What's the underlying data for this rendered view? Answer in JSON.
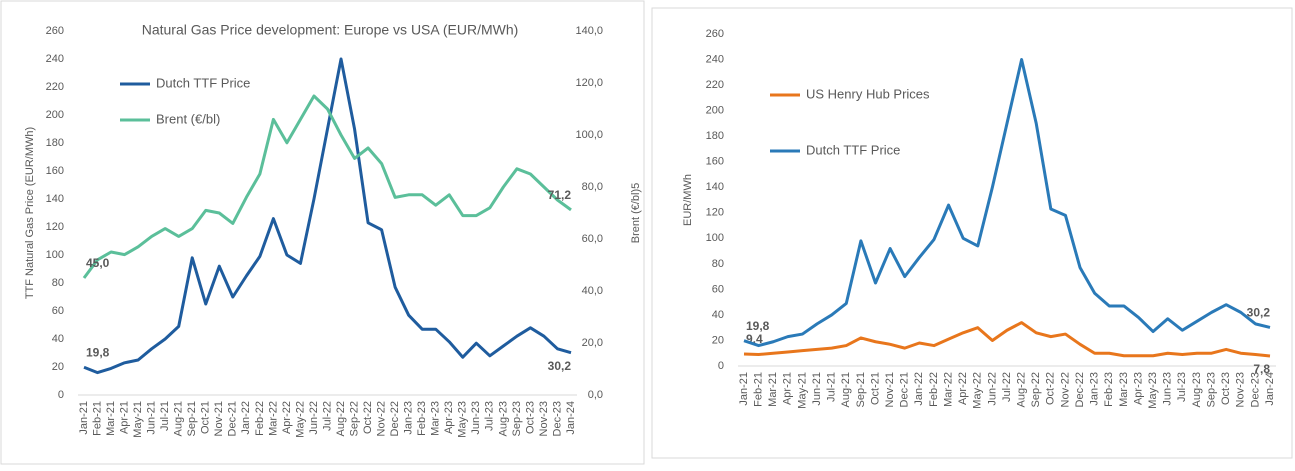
{
  "chart_data": [
    {
      "type": "line",
      "title": "Natural Gas Price development:  Europe vs USA (EUR/MWh)",
      "y_label": "TTF Natural Gas Price (EUR/MWh)",
      "y2_label": "Brent (€/bl)5",
      "legend": "upper left",
      "categories": [
        "Jan-21",
        "Feb-21",
        "Mar-21",
        "Apr-21",
        "May-21",
        "Jun-21",
        "Jul-21",
        "Aug-21",
        "Sep-21",
        "Oct-21",
        "Nov-21",
        "Dec-21",
        "Jan-22",
        "Feb-22",
        "Mar-22",
        "Apr-22",
        "May-22",
        "Jun-22",
        "Jul-22",
        "Aug-22",
        "Sep-22",
        "Oct-22",
        "Nov-22",
        "Dec-22",
        "Jan-23",
        "Feb-23",
        "Mar-23",
        "Apr-23",
        "May-23",
        "Jun-23",
        "Jul-23",
        "Aug-23",
        "Sep-23",
        "Oct-23",
        "Nov-23",
        "Dec-23",
        "Jan-24"
      ],
      "series": [
        {
          "name": "Dutch TTF Price",
          "color": "#1f5c9e",
          "values": [
            19.8,
            16,
            19,
            23,
            25,
            33,
            40,
            49,
            98,
            65,
            92,
            70,
            85,
            99,
            126,
            100,
            94,
            140,
            190,
            240,
            190,
            123,
            118,
            77,
            57,
            47,
            47,
            38,
            27,
            37,
            28,
            35,
            42,
            48,
            42,
            33,
            30.2
          ],
          "value_labels": [
            "19,8",
            null,
            null,
            null,
            null,
            null,
            null,
            null,
            null,
            null,
            null,
            null,
            null,
            null,
            null,
            null,
            null,
            null,
            null,
            null,
            null,
            null,
            null,
            null,
            null,
            null,
            null,
            null,
            null,
            null,
            null,
            null,
            null,
            null,
            null,
            null,
            "30,2"
          ]
        },
        {
          "name": "Brent (€/bl)",
          "color": "#5bbf9a",
          "axis": "y2",
          "values": [
            45.0,
            52,
            55,
            54,
            57,
            61,
            64,
            61,
            64,
            71,
            70,
            66,
            76,
            85,
            106,
            97,
            106,
            115,
            110,
            100,
            91,
            95,
            89,
            76,
            77,
            77,
            73,
            77,
            69,
            69,
            72,
            80,
            87,
            85,
            80,
            75,
            71.2
          ],
          "value_labels": [
            "45,0",
            null,
            null,
            null,
            null,
            null,
            null,
            null,
            null,
            null,
            null,
            null,
            null,
            null,
            null,
            null,
            null,
            null,
            null,
            null,
            null,
            null,
            null,
            null,
            null,
            null,
            null,
            null,
            null,
            null,
            null,
            null,
            null,
            null,
            null,
            null,
            "71,2"
          ]
        }
      ],
      "ylim": [
        0,
        260
      ],
      "yticks": [
        0,
        20,
        40,
        60,
        80,
        100,
        120,
        140,
        160,
        180,
        200,
        220,
        240,
        260
      ],
      "y2lim": [
        0,
        140
      ],
      "y2ticks": [
        {
          "value": 0,
          "label": "0,0"
        },
        {
          "value": 20,
          "label": "20,0"
        },
        {
          "value": 40,
          "label": "40,0"
        },
        {
          "value": 60,
          "label": "60,0"
        },
        {
          "value": 80,
          "label": "80,0"
        },
        {
          "value": 100,
          "label": "100,0"
        },
        {
          "value": 120,
          "label": "120,0"
        },
        {
          "value": 140,
          "label": "140,0"
        }
      ]
    },
    {
      "type": "line",
      "y_label": "EUR/MWh",
      "legend": "upper left",
      "categories": [
        "Jan-21",
        "Feb-21",
        "Mar-21",
        "Apr-21",
        "May-21",
        "Jun-21",
        "Jul-21",
        "Aug-21",
        "Sep-21",
        "Oct-21",
        "Nov-21",
        "Dec-21",
        "Jan-22",
        "Feb-22",
        "Mar-22",
        "Apr-22",
        "May-22",
        "Jun-22",
        "Jul-22",
        "Aug-22",
        "Sep-22",
        "Oct-22",
        "Nov-22",
        "Dec-22",
        "Jan-23",
        "Feb-23",
        "Mar-23",
        "Apr-23",
        "May-23",
        "Jun-23",
        "Jul-23",
        "Aug-23",
        "Sep-23",
        "Oct-23",
        "Nov-23",
        "Dec-23",
        "Jan-24"
      ],
      "series": [
        {
          "name": "US Henry Hub Prices",
          "color": "#e8761c",
          "values": [
            9.4,
            9,
            10,
            11,
            12,
            13,
            14,
            16,
            22,
            19,
            17,
            14,
            18,
            16,
            21,
            26,
            30,
            20,
            28,
            34,
            26,
            23,
            25,
            17,
            10,
            10,
            8,
            8,
            8,
            10,
            9,
            10,
            10,
            13,
            10,
            9,
            7.8
          ],
          "value_labels": [
            "9,4",
            null,
            null,
            null,
            null,
            null,
            null,
            null,
            null,
            null,
            null,
            null,
            null,
            null,
            null,
            null,
            null,
            null,
            null,
            null,
            null,
            null,
            null,
            null,
            null,
            null,
            null,
            null,
            null,
            null,
            null,
            null,
            null,
            null,
            null,
            null,
            "7,8"
          ]
        },
        {
          "name": "Dutch TTF Price",
          "color": "#2a7ab8",
          "values": [
            19.8,
            16,
            19,
            23,
            25,
            33,
            40,
            49,
            98,
            65,
            92,
            70,
            85,
            99,
            126,
            100,
            94,
            140,
            190,
            240,
            190,
            123,
            118,
            77,
            57,
            47,
            47,
            38,
            27,
            37,
            28,
            35,
            42,
            48,
            42,
            33,
            30.2
          ],
          "value_labels": [
            "19,8",
            null,
            null,
            null,
            null,
            null,
            null,
            null,
            null,
            null,
            null,
            null,
            null,
            null,
            null,
            null,
            null,
            null,
            null,
            null,
            null,
            null,
            null,
            null,
            null,
            null,
            null,
            null,
            null,
            null,
            null,
            null,
            null,
            null,
            null,
            null,
            "30,2"
          ]
        }
      ],
      "ylim": [
        0,
        260
      ],
      "yticks": [
        0,
        20,
        40,
        60,
        80,
        100,
        120,
        140,
        160,
        180,
        200,
        220,
        240,
        260
      ]
    }
  ]
}
